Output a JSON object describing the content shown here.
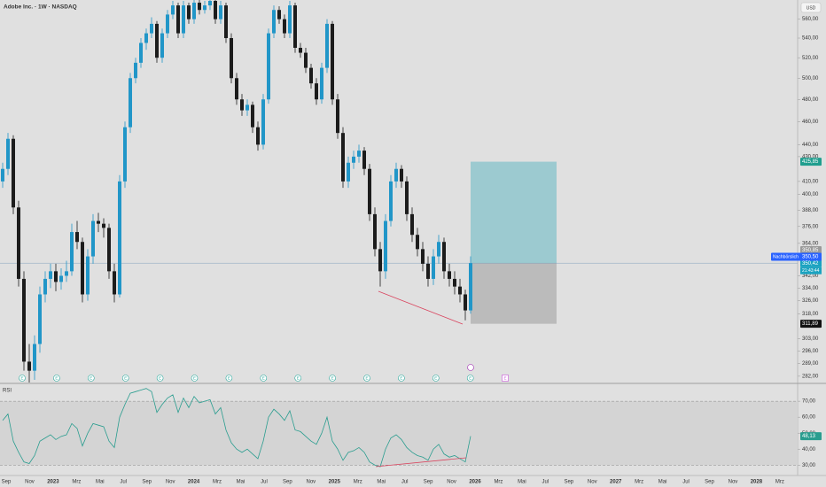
{
  "chart_data": {
    "type": "candlestick",
    "title": "Adobe Inc. · 1W · NASDAQ",
    "currency": "USD",
    "log_scale": true,
    "up_color": "#2196c8",
    "down_color": "#1c1c1c",
    "ylim": [
      278.6,
      581
    ],
    "yticks": [
      {
        "value": 560,
        "label": "560,00"
      },
      {
        "value": 540,
        "label": "540,00"
      },
      {
        "value": 520,
        "label": "520,00"
      },
      {
        "value": 500,
        "label": "500,00"
      },
      {
        "value": 480,
        "label": "480,00"
      },
      {
        "value": 460,
        "label": "460,00"
      },
      {
        "value": 440,
        "label": "440,00"
      },
      {
        "value": 430,
        "label": "430,00"
      },
      {
        "value": 410,
        "label": "410,00"
      },
      {
        "value": 400,
        "label": "400,00"
      },
      {
        "value": 388,
        "label": "388,00"
      },
      {
        "value": 376,
        "label": "376,00"
      },
      {
        "value": 364,
        "label": "364,00"
      },
      {
        "value": 342,
        "label": "342,00"
      },
      {
        "value": 334,
        "label": "334,00"
      },
      {
        "value": 326,
        "label": "326,00"
      },
      {
        "value": 318,
        "label": "318,00"
      },
      {
        "value": 303,
        "label": "303,00"
      },
      {
        "value": 296,
        "label": "296,00"
      },
      {
        "value": 289,
        "label": "289,00"
      },
      {
        "value": 282,
        "label": "282,00"
      }
    ],
    "x_labels": [
      "Sep",
      "Nov",
      "2023",
      "Mrz",
      "Mai",
      "Jul",
      "Sep",
      "Nov",
      "2024",
      "Mrz",
      "Mai",
      "Jul",
      "Sep",
      "Nov",
      "2025",
      "Mrz",
      "Mai",
      "Jul",
      "Sep",
      "Nov",
      "2026",
      "Mrz",
      "Mai",
      "Jul",
      "Sep",
      "Nov",
      "2027",
      "Mrz",
      "Mai",
      "Jul",
      "Sep",
      "Nov",
      "2028",
      "Mrz"
    ],
    "candles": [
      [
        410,
        425,
        405,
        420
      ],
      [
        420,
        450,
        415,
        445
      ],
      [
        445,
        448,
        385,
        390
      ],
      [
        390,
        395,
        335,
        340
      ],
      [
        340,
        345,
        285,
        290
      ],
      [
        290,
        300,
        275,
        285
      ],
      [
        285,
        305,
        280,
        300
      ],
      [
        300,
        335,
        295,
        330
      ],
      [
        330,
        345,
        325,
        340
      ],
      [
        340,
        350,
        334,
        345
      ],
      [
        345,
        350,
        332,
        338
      ],
      [
        338,
        347,
        333,
        342
      ],
      [
        342,
        352,
        338,
        345
      ],
      [
        345,
        378,
        342,
        372
      ],
      [
        372,
        380,
        360,
        365
      ],
      [
        365,
        368,
        325,
        330
      ],
      [
        330,
        360,
        326,
        355
      ],
      [
        355,
        385,
        350,
        380
      ],
      [
        380,
        386,
        372,
        378
      ],
      [
        378,
        382,
        368,
        375
      ],
      [
        375,
        378,
        340,
        345
      ],
      [
        345,
        350,
        325,
        330
      ],
      [
        330,
        415,
        328,
        410
      ],
      [
        410,
        460,
        405,
        455
      ],
      [
        455,
        505,
        450,
        500
      ],
      [
        500,
        520,
        495,
        515
      ],
      [
        515,
        540,
        510,
        535
      ],
      [
        535,
        550,
        528,
        545
      ],
      [
        545,
        562,
        540,
        555
      ],
      [
        555,
        558,
        515,
        520
      ],
      [
        520,
        550,
        515,
        545
      ],
      [
        545,
        570,
        540,
        565
      ],
      [
        565,
        580,
        560,
        575
      ],
      [
        575,
        578,
        540,
        545
      ],
      [
        545,
        580,
        540,
        575
      ],
      [
        575,
        578,
        555,
        560
      ],
      [
        560,
        582,
        555,
        578
      ],
      [
        578,
        582,
        565,
        570
      ],
      [
        570,
        580,
        566,
        575
      ],
      [
        575,
        585,
        570,
        580
      ],
      [
        580,
        582,
        555,
        560
      ],
      [
        560,
        580,
        555,
        575
      ],
      [
        575,
        578,
        535,
        540
      ],
      [
        540,
        545,
        495,
        500
      ],
      [
        500,
        505,
        475,
        480
      ],
      [
        480,
        485,
        465,
        470
      ],
      [
        470,
        480,
        465,
        475
      ],
      [
        475,
        478,
        450,
        455
      ],
      [
        455,
        460,
        435,
        440
      ],
      [
        440,
        485,
        436,
        480
      ],
      [
        480,
        550,
        476,
        545
      ],
      [
        545,
        575,
        540,
        570
      ],
      [
        570,
        574,
        555,
        560
      ],
      [
        560,
        565,
        540,
        545
      ],
      [
        545,
        580,
        540,
        575
      ],
      [
        575,
        578,
        525,
        530
      ],
      [
        530,
        535,
        520,
        525
      ],
      [
        525,
        530,
        505,
        510
      ],
      [
        510,
        514,
        490,
        495
      ],
      [
        495,
        500,
        475,
        480
      ],
      [
        480,
        515,
        476,
        510
      ],
      [
        510,
        560,
        505,
        555
      ],
      [
        555,
        558,
        475,
        480
      ],
      [
        480,
        485,
        445,
        450
      ],
      [
        450,
        455,
        405,
        410
      ],
      [
        410,
        430,
        405,
        425
      ],
      [
        425,
        435,
        420,
        430
      ],
      [
        430,
        440,
        425,
        435
      ],
      [
        435,
        438,
        415,
        420
      ],
      [
        420,
        424,
        380,
        385
      ],
      [
        385,
        390,
        355,
        360
      ],
      [
        360,
        365,
        335,
        345
      ],
      [
        345,
        385,
        340,
        380
      ],
      [
        380,
        415,
        376,
        410
      ],
      [
        410,
        425,
        405,
        420
      ],
      [
        420,
        423,
        405,
        410
      ],
      [
        410,
        414,
        380,
        385
      ],
      [
        385,
        390,
        365,
        370
      ],
      [
        370,
        375,
        355,
        360
      ],
      [
        360,
        365,
        345,
        350
      ],
      [
        350,
        355,
        335,
        340
      ],
      [
        340,
        360,
        336,
        355
      ],
      [
        355,
        370,
        350,
        365
      ],
      [
        365,
        368,
        340,
        345
      ],
      [
        345,
        350,
        335,
        340
      ],
      [
        340,
        345,
        330,
        335
      ],
      [
        335,
        340,
        325,
        330
      ],
      [
        330,
        333,
        314,
        320
      ],
      [
        320,
        355,
        318,
        350.42
      ]
    ],
    "tags": [
      {
        "value": 425.85,
        "label": "425,85",
        "color": "#1f9e8e"
      },
      {
        "value": 350.85,
        "label": "350,85",
        "color": "#9a9a9a"
      },
      {
        "value": 350.42,
        "label": "350,42",
        "color": "#1ba3c0"
      },
      {
        "value": 311.89,
        "label": "311,89",
        "color": "#111111"
      }
    ],
    "postmarket": {
      "text": "Nachbörslich",
      "value": 350.5,
      "label": "350,50"
    },
    "countdown": "21:43:44",
    "position": {
      "target": 425.85,
      "entry": 350.42,
      "stop": 311.89
    },
    "event_label": "E",
    "rsi": {
      "label": "RSI",
      "color": "#2a9d8f",
      "ylim": [
        23.5,
        79.5
      ],
      "band": [
        30,
        70
      ],
      "yticks": [
        {
          "value": 70,
          "label": "70,00"
        },
        {
          "value": 60,
          "label": "60,00"
        },
        {
          "value": 50,
          "label": "50,00"
        },
        {
          "value": 40,
          "label": "40,00"
        },
        {
          "value": 30,
          "label": "30,00"
        }
      ],
      "values": [
        58,
        62,
        45,
        38,
        32,
        31,
        36,
        45,
        47,
        49,
        46,
        48,
        49,
        56,
        53,
        42,
        50,
        56,
        55,
        54,
        45,
        41,
        60,
        68,
        75,
        76,
        77,
        78,
        76,
        63,
        68,
        72,
        74,
        63,
        72,
        66,
        73,
        69,
        70,
        71,
        62,
        66,
        52,
        44,
        40,
        38,
        40,
        37,
        34,
        45,
        60,
        65,
        62,
        58,
        64,
        52,
        51,
        48,
        45,
        43,
        50,
        60,
        45,
        40,
        33,
        38,
        39,
        41,
        38,
        32,
        30,
        29,
        40,
        47,
        49,
        46,
        41,
        38,
        36,
        35,
        33,
        40,
        43,
        37,
        35,
        36,
        34,
        32,
        48.13
      ],
      "value_label": "48,13"
    }
  }
}
